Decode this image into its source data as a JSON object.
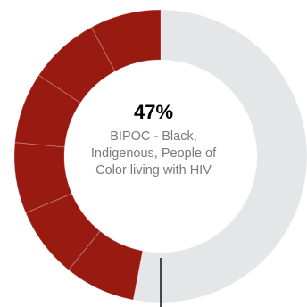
{
  "chart_data": {
    "type": "pie",
    "variant": "donut",
    "value_label": "47%",
    "description_lines": [
      "BIPOC - Black,",
      "Indigenous, People of",
      "Color living with HIV"
    ],
    "slices": [
      {
        "value": 53,
        "color": "#e5e6e8",
        "highlighted": false
      },
      {
        "value": 47,
        "color": "#991a10",
        "highlighted": true
      }
    ],
    "highlight_segments": 6
  }
}
